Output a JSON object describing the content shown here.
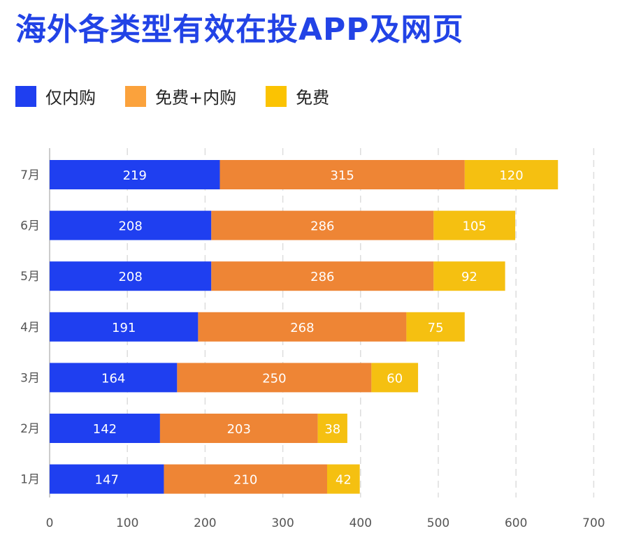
{
  "title": "海外各类型有效在投APP及网页",
  "legend": [
    {
      "name": "仅内购",
      "color": "#1f3ff0"
    },
    {
      "name": "免费+内购",
      "color": "#fba23c"
    },
    {
      "name": "免费",
      "color": "#fbc302"
    }
  ],
  "colors": {
    "series_bar": [
      "#1f3ff0",
      "#ee8535",
      "#f5c011"
    ],
    "grid": "#dddddd",
    "axis": "#bbbbbb",
    "title": "#2243e6"
  },
  "chart_data": {
    "type": "bar",
    "orientation": "horizontal",
    "stacked": true,
    "title": "海外各类型有效在投APP及网页",
    "xlabel": "",
    "ylabel": "",
    "categories": [
      "7月",
      "6月",
      "5月",
      "4月",
      "3月",
      "2月",
      "1月"
    ],
    "series": [
      {
        "name": "仅内购",
        "values": [
          219,
          208,
          208,
          191,
          164,
          142,
          147
        ]
      },
      {
        "name": "免费+内购",
        "values": [
          315,
          286,
          286,
          268,
          250,
          203,
          210
        ]
      },
      {
        "name": "免费",
        "values": [
          120,
          105,
          92,
          75,
          60,
          38,
          42
        ]
      }
    ],
    "xlim": [
      0,
      700
    ],
    "xticks": [
      "0",
      "100",
      "200",
      "300",
      "400",
      "500",
      "600",
      "700"
    ],
    "grid": true,
    "grid_style": "dashed vertical",
    "legend_position": "top-left"
  }
}
